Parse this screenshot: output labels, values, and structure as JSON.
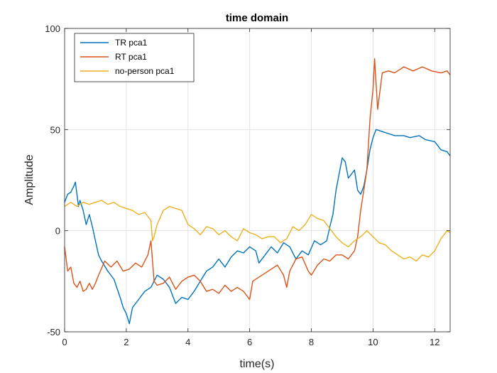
{
  "chart_data": {
    "type": "line",
    "title": "time domain",
    "xlabel": "time(s)",
    "ylabel": "Amplitude",
    "xlim": [
      0,
      12.5
    ],
    "ylim": [
      -50,
      100
    ],
    "xticks": [
      0,
      2,
      4,
      6,
      8,
      10,
      12
    ],
    "yticks": [
      -50,
      0,
      50,
      100
    ],
    "grid": true,
    "legend_position": "top-left",
    "series": [
      {
        "name": "TR pca1",
        "color": "#0072BD",
        "points": [
          [
            0,
            14
          ],
          [
            0.1,
            18
          ],
          [
            0.2,
            19
          ],
          [
            0.3,
            22
          ],
          [
            0.35,
            24
          ],
          [
            0.45,
            12
          ],
          [
            0.5,
            15
          ],
          [
            0.6,
            10
          ],
          [
            0.7,
            3
          ],
          [
            0.8,
            8
          ],
          [
            0.9,
            2
          ],
          [
            1.0,
            -5
          ],
          [
            1.1,
            -12
          ],
          [
            1.2,
            -15
          ],
          [
            1.4,
            -20
          ],
          [
            1.6,
            -24
          ],
          [
            1.8,
            -33
          ],
          [
            1.9,
            -38
          ],
          [
            2.0,
            -41
          ],
          [
            2.1,
            -46
          ],
          [
            2.2,
            -38
          ],
          [
            2.4,
            -34
          ],
          [
            2.6,
            -30
          ],
          [
            2.8,
            -28
          ],
          [
            3.0,
            -22
          ],
          [
            3.2,
            -24
          ],
          [
            3.4,
            -28
          ],
          [
            3.5,
            -32
          ],
          [
            3.6,
            -36
          ],
          [
            3.8,
            -33
          ],
          [
            4.0,
            -34
          ],
          [
            4.2,
            -30
          ],
          [
            4.4,
            -25
          ],
          [
            4.6,
            -20
          ],
          [
            4.8,
            -18
          ],
          [
            5.0,
            -14
          ],
          [
            5.2,
            -18
          ],
          [
            5.4,
            -13
          ],
          [
            5.6,
            -10
          ],
          [
            5.8,
            -11
          ],
          [
            6.0,
            -8
          ],
          [
            6.2,
            -10
          ],
          [
            6.3,
            -16
          ],
          [
            6.5,
            -12
          ],
          [
            6.7,
            -8
          ],
          [
            6.9,
            -11
          ],
          [
            7.1,
            -6
          ],
          [
            7.3,
            -8
          ],
          [
            7.5,
            -14
          ],
          [
            7.7,
            -10
          ],
          [
            7.9,
            -12
          ],
          [
            8.1,
            -5
          ],
          [
            8.3,
            -7
          ],
          [
            8.5,
            -5
          ],
          [
            8.6,
            2
          ],
          [
            8.7,
            8
          ],
          [
            8.8,
            20
          ],
          [
            8.9,
            28
          ],
          [
            9.0,
            36
          ],
          [
            9.1,
            34
          ],
          [
            9.2,
            26
          ],
          [
            9.4,
            30
          ],
          [
            9.5,
            20
          ],
          [
            9.6,
            18
          ],
          [
            9.7,
            22
          ],
          [
            9.8,
            30
          ],
          [
            9.9,
            40
          ],
          [
            10.0,
            46
          ],
          [
            10.1,
            50
          ],
          [
            10.3,
            49
          ],
          [
            10.5,
            48
          ],
          [
            10.7,
            47
          ],
          [
            11.0,
            47
          ],
          [
            11.2,
            46
          ],
          [
            11.5,
            47
          ],
          [
            11.7,
            45
          ],
          [
            12.0,
            44
          ],
          [
            12.2,
            40
          ],
          [
            12.4,
            39
          ],
          [
            12.5,
            37
          ]
        ]
      },
      {
        "name": "RT pca1",
        "color": "#D95319",
        "points": [
          [
            0,
            -8
          ],
          [
            0.1,
            -20
          ],
          [
            0.2,
            -18
          ],
          [
            0.3,
            -26
          ],
          [
            0.4,
            -28
          ],
          [
            0.5,
            -25
          ],
          [
            0.6,
            -30
          ],
          [
            0.7,
            -29
          ],
          [
            0.8,
            -26
          ],
          [
            0.9,
            -29
          ],
          [
            1.0,
            -26
          ],
          [
            1.1,
            -22
          ],
          [
            1.3,
            -15
          ],
          [
            1.5,
            -18
          ],
          [
            1.7,
            -15
          ],
          [
            1.9,
            -20
          ],
          [
            2.1,
            -19
          ],
          [
            2.3,
            -16
          ],
          [
            2.5,
            -18
          ],
          [
            2.7,
            -12
          ],
          [
            2.8,
            -5
          ],
          [
            2.85,
            -15
          ],
          [
            2.9,
            -25
          ],
          [
            3.0,
            -27
          ],
          [
            3.2,
            -26
          ],
          [
            3.4,
            -23
          ],
          [
            3.6,
            -29
          ],
          [
            3.8,
            -25
          ],
          [
            4.0,
            -23
          ],
          [
            4.2,
            -22
          ],
          [
            4.4,
            -25
          ],
          [
            4.6,
            -30
          ],
          [
            4.8,
            -29
          ],
          [
            5.0,
            -31
          ],
          [
            5.2,
            -27
          ],
          [
            5.4,
            -30
          ],
          [
            5.6,
            -28
          ],
          [
            5.8,
            -30
          ],
          [
            6.0,
            -34
          ],
          [
            6.1,
            -25
          ],
          [
            6.3,
            -23
          ],
          [
            6.5,
            -21
          ],
          [
            6.7,
            -19
          ],
          [
            6.9,
            -17
          ],
          [
            7.1,
            -22
          ],
          [
            7.2,
            -28
          ],
          [
            7.3,
            -20
          ],
          [
            7.5,
            -14
          ],
          [
            7.7,
            -13
          ],
          [
            7.9,
            -20
          ],
          [
            8.0,
            -22
          ],
          [
            8.2,
            -17
          ],
          [
            8.4,
            -14
          ],
          [
            8.6,
            -15
          ],
          [
            8.8,
            -12
          ],
          [
            9.0,
            -12
          ],
          [
            9.2,
            -14
          ],
          [
            9.4,
            -10
          ],
          [
            9.5,
            -3
          ],
          [
            9.6,
            10
          ],
          [
            9.7,
            20
          ],
          [
            9.8,
            30
          ],
          [
            9.9,
            55
          ],
          [
            10.0,
            70
          ],
          [
            10.05,
            85
          ],
          [
            10.15,
            60
          ],
          [
            10.3,
            78
          ],
          [
            10.5,
            79
          ],
          [
            10.7,
            78
          ],
          [
            11.0,
            81
          ],
          [
            11.3,
            79
          ],
          [
            11.6,
            81
          ],
          [
            11.9,
            79
          ],
          [
            12.2,
            78
          ],
          [
            12.4,
            79
          ],
          [
            12.5,
            77
          ]
        ]
      },
      {
        "name": "no-person pca1",
        "color": "#EDB120",
        "points": [
          [
            0,
            12
          ],
          [
            0.2,
            14
          ],
          [
            0.4,
            12
          ],
          [
            0.6,
            14
          ],
          [
            0.8,
            13
          ],
          [
            1.0,
            14
          ],
          [
            1.2,
            15
          ],
          [
            1.4,
            13
          ],
          [
            1.6,
            14
          ],
          [
            1.8,
            12
          ],
          [
            2.0,
            11
          ],
          [
            2.2,
            10
          ],
          [
            2.4,
            8
          ],
          [
            2.6,
            9
          ],
          [
            2.7,
            7
          ],
          [
            2.8,
            5
          ],
          [
            2.85,
            -5
          ],
          [
            2.9,
            -3
          ],
          [
            3.0,
            3
          ],
          [
            3.2,
            10
          ],
          [
            3.4,
            12
          ],
          [
            3.6,
            11
          ],
          [
            3.8,
            10
          ],
          [
            4.0,
            3
          ],
          [
            4.2,
            1
          ],
          [
            4.4,
            -2
          ],
          [
            4.6,
            2
          ],
          [
            4.8,
            1
          ],
          [
            5.0,
            -2
          ],
          [
            5.2,
            0
          ],
          [
            5.4,
            -3
          ],
          [
            5.6,
            -5
          ],
          [
            5.8,
            1
          ],
          [
            6.0,
            -1
          ],
          [
            6.2,
            -2
          ],
          [
            6.4,
            -4
          ],
          [
            6.6,
            -3
          ],
          [
            6.8,
            -3
          ],
          [
            7.0,
            -6
          ],
          [
            7.2,
            -4
          ],
          [
            7.4,
            2
          ],
          [
            7.6,
            0
          ],
          [
            7.8,
            3
          ],
          [
            8.0,
            8
          ],
          [
            8.2,
            6
          ],
          [
            8.4,
            5
          ],
          [
            8.6,
            1
          ],
          [
            8.8,
            -3
          ],
          [
            9.0,
            -6
          ],
          [
            9.2,
            -8
          ],
          [
            9.4,
            -5
          ],
          [
            9.6,
            -3
          ],
          [
            9.8,
            0
          ],
          [
            10.0,
            -3
          ],
          [
            10.2,
            -6
          ],
          [
            10.4,
            -7
          ],
          [
            10.6,
            -10
          ],
          [
            10.8,
            -12
          ],
          [
            11.0,
            -14
          ],
          [
            11.2,
            -13
          ],
          [
            11.4,
            -15
          ],
          [
            11.6,
            -12
          ],
          [
            11.8,
            -13
          ],
          [
            12.0,
            -10
          ],
          [
            12.2,
            -4
          ],
          [
            12.4,
            0
          ],
          [
            12.5,
            -1
          ]
        ]
      }
    ]
  }
}
